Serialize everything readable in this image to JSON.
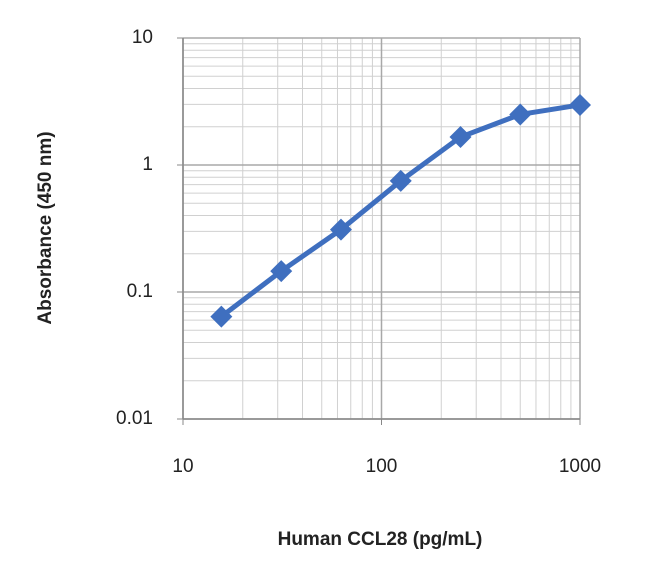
{
  "chart_data": {
    "type": "line",
    "x_label": "Human CCL28 (pg/mL)",
    "y_label": "Absorbance (450 nm)",
    "x": [
      15.6,
      31.25,
      62.5,
      125,
      250,
      500,
      1000
    ],
    "series": [
      {
        "color": "#3f6fbf",
        "values": [
          0.064,
          0.146,
          0.31,
          0.75,
          1.66,
          2.5,
          2.97
        ]
      }
    ],
    "xlim": [
      10,
      1000
    ],
    "xticks": [
      10,
      100,
      1000
    ],
    "ylim": [
      0.01,
      10
    ],
    "yticks": [
      0.01,
      0.1,
      1,
      10
    ],
    "xlog": true,
    "ylog": true,
    "grid": true,
    "minor_grid": true
  }
}
